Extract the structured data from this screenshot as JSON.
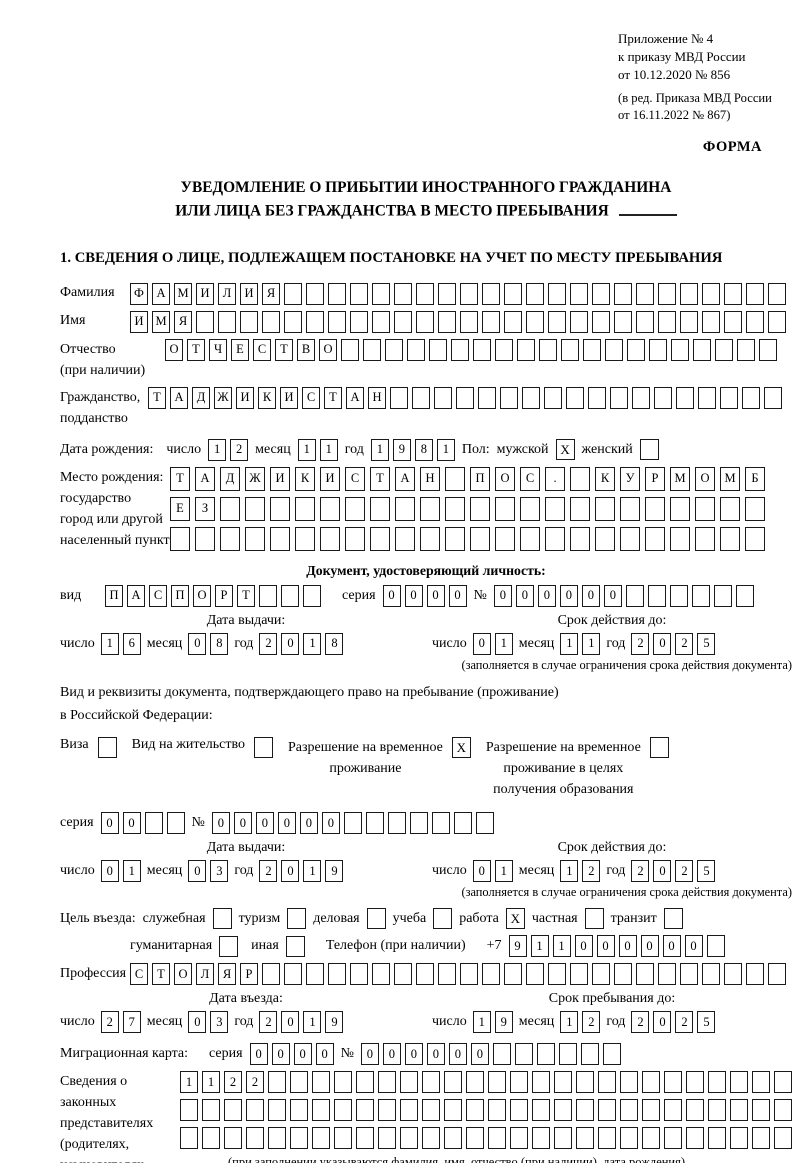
{
  "header": {
    "line1": "Приложение № 4",
    "line2": "к приказу МВД России",
    "line3": "от 10.12.2020 № 856",
    "sub1": "(в ред. Приказа МВД России",
    "sub2": "от 16.11.2022 № 867)",
    "form_label": "ФОРМА"
  },
  "title": {
    "line1": "УВЕДОМЛЕНИЕ О ПРИБЫТИИ ИНОСТРАННОГО ГРАЖДАНИНА",
    "line2": "ИЛИ ЛИЦА БЕЗ ГРАЖДАНСТВА В МЕСТО ПРЕБЫВАНИЯ"
  },
  "section_heading": "1. СВЕДЕНИЯ О ЛИЦЕ, ПОДЛЕЖАЩЕМ ПОСТАНОВКЕ НА УЧЕТ ПО МЕСТУ ПРЕБЫВАНИЯ",
  "surname": {
    "label": "Фамилия",
    "cells": [
      "Ф",
      "А",
      "М",
      "И",
      "Л",
      "И",
      "Я",
      "",
      "",
      "",
      "",
      "",
      "",
      "",
      "",
      "",
      "",
      "",
      "",
      "",
      "",
      "",
      "",
      "",
      "",
      "",
      "",
      "",
      "",
      ""
    ]
  },
  "firstname": {
    "label": "Имя",
    "cells": [
      "И",
      "М",
      "Я",
      "",
      "",
      "",
      "",
      "",
      "",
      "",
      "",
      "",
      "",
      "",
      "",
      "",
      "",
      "",
      "",
      "",
      "",
      "",
      "",
      "",
      "",
      "",
      "",
      "",
      "",
      ""
    ]
  },
  "patronymic": {
    "label1": "Отчество",
    "label2": "(при наличии)",
    "cells": [
      "О",
      "Т",
      "Ч",
      "Е",
      "С",
      "Т",
      "В",
      "О",
      "",
      "",
      "",
      "",
      "",
      "",
      "",
      "",
      "",
      "",
      "",
      "",
      "",
      "",
      "",
      "",
      "",
      "",
      "",
      ""
    ]
  },
  "citizenship": {
    "label1": "Гражданство,",
    "label2": "подданство",
    "cells": [
      "Т",
      "А",
      "Д",
      "Ж",
      "И",
      "К",
      "И",
      "С",
      "Т",
      "А",
      "Н",
      "",
      "",
      "",
      "",
      "",
      "",
      "",
      "",
      "",
      "",
      "",
      "",
      "",
      "",
      "",
      "",
      "",
      ""
    ]
  },
  "birthdate": {
    "label": "Дата рождения:",
    "day_label": "число",
    "day": [
      "1",
      "2"
    ],
    "month_label": "месяц",
    "month": [
      "1",
      "1"
    ],
    "year_label": "год",
    "year": [
      "1",
      "9",
      "8",
      "1"
    ],
    "sex_label": "Пол:",
    "male_label": "мужской",
    "male_mark": "X",
    "female_label": "женский",
    "female_mark": ""
  },
  "birthplace": {
    "label1": "Место рождения:",
    "label2": "государство",
    "label3": "город или другой",
    "label4": "населенный пункт",
    "row1": [
      "Т",
      "А",
      "Д",
      "Ж",
      "И",
      "К",
      "И",
      "С",
      "Т",
      "А",
      "Н",
      "",
      "П",
      "О",
      "С",
      ".",
      "",
      "К",
      "У",
      "Р",
      "М",
      "О",
      "М",
      "Б"
    ],
    "row2": [
      "Е",
      "З",
      "",
      "",
      "",
      "",
      "",
      "",
      "",
      "",
      "",
      "",
      "",
      "",
      "",
      "",
      "",
      "",
      "",
      "",
      "",
      "",
      "",
      ""
    ],
    "row3": [
      "",
      "",
      "",
      "",
      "",
      "",
      "",
      "",
      "",
      "",
      "",
      "",
      "",
      "",
      "",
      "",
      "",
      "",
      "",
      "",
      "",
      "",
      "",
      ""
    ]
  },
  "iddoc": {
    "heading": "Документ, удостоверяющий личность:",
    "kind_label": "вид",
    "kind": [
      "П",
      "А",
      "С",
      "П",
      "О",
      "Р",
      "Т",
      "",
      "",
      ""
    ],
    "series_label": "серия",
    "series": [
      "0",
      "0",
      "0",
      "0"
    ],
    "number_label": "№",
    "number": [
      "0",
      "0",
      "0",
      "0",
      "0",
      "0",
      "",
      "",
      "",
      "",
      "",
      ""
    ]
  },
  "doc_dates": {
    "issued_heading": "Дата выдачи:",
    "valid_heading": "Срок действия до:",
    "day_label": "число",
    "month_label": "месяц",
    "year_label": "год",
    "issued_day": [
      "1",
      "6"
    ],
    "issued_month": [
      "0",
      "8"
    ],
    "issued_year": [
      "2",
      "0",
      "1",
      "8"
    ],
    "valid_day": [
      "0",
      "1"
    ],
    "valid_month": [
      "1",
      "1"
    ],
    "valid_year": [
      "2",
      "0",
      "2",
      "5"
    ],
    "note": "(заполняется в случае ограничения срока действия документа)"
  },
  "residency": {
    "intro1": "Вид и реквизиты документа, подтверждающего право на пребывание (проживание)",
    "intro2": "в Российской Федерации:",
    "visa_label": "Виза",
    "visa_mark": "",
    "rp_label": "Вид на жительство",
    "rp_mark": "",
    "trp_line1": "Разрешение на временное",
    "trp_line2": "проживание",
    "trp_mark": "X",
    "edu_line1": "Разрешение на временное",
    "edu_line2": "проживание в целях",
    "edu_line3": "получения образования",
    "edu_mark": ""
  },
  "permit_doc": {
    "series_label": "серия",
    "series": [
      "0",
      "0",
      "",
      ""
    ],
    "number_label": "№",
    "number": [
      "0",
      "0",
      "0",
      "0",
      "0",
      "0",
      "",
      "",
      "",
      "",
      "",
      "",
      ""
    ]
  },
  "permit_dates": {
    "issued_heading": "Дата выдачи:",
    "valid_heading": "Срок действия до:",
    "day_label": "число",
    "month_label": "месяц",
    "year_label": "год",
    "issued_day": [
      "0",
      "1"
    ],
    "issued_month": [
      "0",
      "3"
    ],
    "issued_year": [
      "2",
      "0",
      "1",
      "9"
    ],
    "valid_day": [
      "0",
      "1"
    ],
    "valid_month": [
      "1",
      "2"
    ],
    "valid_year": [
      "2",
      "0",
      "2",
      "5"
    ],
    "note": "(заполняется в случае ограничения срока действия документа)"
  },
  "purpose": {
    "label": "Цель въезда:",
    "options": [
      {
        "label": "служебная",
        "mark": ""
      },
      {
        "label": "туризм",
        "mark": ""
      },
      {
        "label": "деловая",
        "mark": ""
      },
      {
        "label": "учеба",
        "mark": ""
      },
      {
        "label": "работа",
        "mark": "X"
      },
      {
        "label": "частная",
        "mark": ""
      },
      {
        "label": "транзит",
        "mark": ""
      }
    ],
    "row2": [
      {
        "label": "гуманитарная",
        "mark": ""
      },
      {
        "label": "иная",
        "mark": ""
      }
    ],
    "phone_label": "Телефон (при наличии)",
    "phone_prefix": "+7",
    "phone_cells": [
      "9",
      "1",
      "1",
      "0",
      "0",
      "0",
      "0",
      "0",
      "0",
      ""
    ]
  },
  "profession": {
    "label": "Профессия",
    "cells": [
      "С",
      "Т",
      "О",
      "Л",
      "Я",
      "Р",
      "",
      "",
      "",
      "",
      "",
      "",
      "",
      "",
      "",
      "",
      "",
      "",
      "",
      "",
      "",
      "",
      "",
      "",
      "",
      "",
      "",
      "",
      "",
      ""
    ]
  },
  "entry_dates": {
    "entry_heading": "Дата въезда:",
    "stay_heading": "Срок пребывания до:",
    "day_label": "число",
    "month_label": "месяц",
    "year_label": "год",
    "entry_day": [
      "2",
      "7"
    ],
    "entry_month": [
      "0",
      "3"
    ],
    "entry_year": [
      "2",
      "0",
      "1",
      "9"
    ],
    "stay_day": [
      "1",
      "9"
    ],
    "stay_month": [
      "1",
      "2"
    ],
    "stay_year": [
      "2",
      "0",
      "2",
      "5"
    ]
  },
  "migration_card": {
    "label": "Миграционная карта:",
    "series_label": "серия",
    "series": [
      "0",
      "0",
      "0",
      "0"
    ],
    "number_label": "№",
    "number": [
      "0",
      "0",
      "0",
      "0",
      "0",
      "0",
      "",
      "",
      "",
      "",
      "",
      ""
    ]
  },
  "guardians": {
    "label1": "Сведения о",
    "label2": "законных",
    "label3": "представителях",
    "label4": "(родителях,",
    "label5": "усыновителях,",
    "label6": "попечителях)",
    "row1": [
      "1",
      "1",
      "2",
      "2",
      "",
      "",
      "",
      "",
      "",
      "",
      "",
      "",
      "",
      "",
      "",
      "",
      "",
      "",
      "",
      "",
      "",
      "",
      "",
      "",
      "",
      "",
      "",
      ""
    ],
    "row2": [
      "",
      "",
      "",
      "",
      "",
      "",
      "",
      "",
      "",
      "",
      "",
      "",
      "",
      "",
      "",
      "",
      "",
      "",
      "",
      "",
      "",
      "",
      "",
      "",
      "",
      "",
      "",
      ""
    ],
    "row3": [
      "",
      "",
      "",
      "",
      "",
      "",
      "",
      "",
      "",
      "",
      "",
      "",
      "",
      "",
      "",
      "",
      "",
      "",
      "",
      "",
      "",
      "",
      "",
      "",
      "",
      "",
      "",
      ""
    ],
    "note": "(при заполнении указываются фамилия, имя, отчество (при наличии), дата рождения)"
  }
}
